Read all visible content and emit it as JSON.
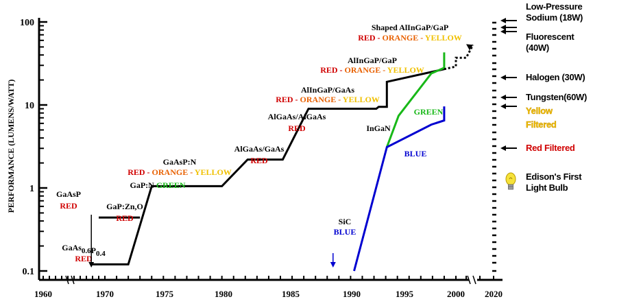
{
  "chart_data": {
    "type": "line",
    "title": "",
    "xlabel": "",
    "ylabel": "PERFORMANCE (LUMENS/WATT)",
    "y_scale": "log",
    "ylim": [
      0.1,
      120
    ],
    "xlim": [
      1958,
      2021
    ],
    "x_ticks": [
      "1960",
      "1970",
      "1975",
      "1980",
      "1985",
      "1990",
      "1995",
      "2000",
      "2020"
    ],
    "y_ticks": [
      "0.1",
      "1",
      "10",
      "100"
    ],
    "legend": "none",
    "colors": {
      "red": "#d00000",
      "orange": "#e86000",
      "yellow": "#f0c000",
      "green": "#18b818",
      "blue": "#0000d0",
      "black": "#000000"
    },
    "series": [
      {
        "color": "black",
        "points": [
          [
            1968,
            0.12
          ],
          [
            1972,
            0.12
          ],
          [
            1974,
            1.05
          ],
          [
            1980,
            1.05
          ],
          [
            1982.2,
            2.2
          ],
          [
            1985.2,
            2.2
          ],
          [
            1987.4,
            9.0
          ],
          [
            1993.2,
            9.0
          ],
          [
            1993.4,
            9.5
          ],
          [
            1994.1,
            9.5
          ],
          [
            1994.1,
            19.0
          ],
          [
            1999,
            27.0
          ]
        ]
      },
      {
        "color": "black",
        "points": [
          [
            1969,
            0.44
          ],
          [
            1973,
            0.44
          ]
        ]
      },
      {
        "color": "green",
        "points": [
          [
            1994.1,
            3.1
          ],
          [
            1995.1,
            7.4
          ],
          [
            1997.9,
            24.0
          ],
          [
            1999,
            28.0
          ],
          [
            1999,
            43.0
          ]
        ]
      },
      {
        "color": "blue",
        "points": [
          [
            1991.3,
            0.1
          ],
          [
            1994.1,
            3.1
          ],
          [
            1997.9,
            5.8
          ],
          [
            1999,
            6.5
          ],
          [
            1999,
            9.6
          ]
        ]
      }
    ],
    "projection": {
      "style": "dotted",
      "color": "black",
      "points": [
        [
          1999,
          27.0
        ],
        [
          2000,
          29.0
        ],
        [
          2000,
          37.0
        ],
        [
          2001,
          37.0
        ],
        [
          2002,
          53.0
        ]
      ]
    },
    "annotations": [
      {
        "lines": [
          [
            {
              "t": "GaAsP",
              "c": "black"
            }
          ],
          [
            {
              "t": "RED",
              "c": "red"
            }
          ]
        ]
      },
      {
        "lines": [
          [
            {
              "t": "GaP:Zn,O",
              "c": "black"
            }
          ],
          [
            {
              "t": "RED",
              "c": "red"
            }
          ]
        ]
      },
      {
        "lines": [
          [
            {
              "t": "GaAs",
              "c": "black"
            },
            {
              "t": "0.6",
              "c": "black",
              "sub": true
            },
            {
              "t": "P",
              "c": "black"
            },
            {
              "t": "0.4",
              "c": "black",
              "sub": true
            }
          ],
          [
            {
              "t": "RED",
              "c": "red"
            }
          ]
        ]
      },
      {
        "lines": [
          [
            {
              "t": "GaAsP:N",
              "c": "black"
            }
          ],
          [
            {
              "t": "RED",
              "c": "red"
            },
            {
              "t": " - ",
              "c": "red"
            },
            {
              "t": "ORANGE",
              "c": "orange"
            },
            {
              "t": " - ",
              "c": "orange"
            },
            {
              "t": "YELLOW",
              "c": "yellow"
            }
          ]
        ]
      },
      {
        "lines": [
          [
            {
              "t": "GaP:N ",
              "c": "black"
            },
            {
              "t": "GREEN",
              "c": "green"
            }
          ]
        ]
      },
      {
        "lines": [
          [
            {
              "t": "AlGaAs/GaAs",
              "c": "black"
            }
          ],
          [
            {
              "t": "RED",
              "c": "red"
            }
          ]
        ]
      },
      {
        "lines": [
          [
            {
              "t": "AlGaAs/AlGaAs",
              "c": "black"
            }
          ],
          [
            {
              "t": "RED",
              "c": "red"
            }
          ]
        ]
      },
      {
        "lines": [
          [
            {
              "t": "AlInGaP/GaAs",
              "c": "black"
            }
          ],
          [
            {
              "t": "RED",
              "c": "red"
            },
            {
              "t": " - ",
              "c": "red"
            },
            {
              "t": "ORANGE",
              "c": "orange"
            },
            {
              "t": " - ",
              "c": "orange"
            },
            {
              "t": "YELLOW",
              "c": "yellow"
            }
          ]
        ]
      },
      {
        "lines": [
          [
            {
              "t": "AlInGaP/GaP",
              "c": "black"
            }
          ],
          [
            {
              "t": "RED",
              "c": "red"
            },
            {
              "t": " - ",
              "c": "red"
            },
            {
              "t": "ORANGE",
              "c": "orange"
            },
            {
              "t": " - ",
              "c": "orange"
            },
            {
              "t": "YELLOW",
              "c": "yellow"
            }
          ]
        ]
      },
      {
        "lines": [
          [
            {
              "t": "Shaped AlInGaP/GaP",
              "c": "black"
            }
          ],
          [
            {
              "t": "RED",
              "c": "red"
            },
            {
              "t": " - ",
              "c": "red"
            },
            {
              "t": "ORANGE",
              "c": "orange"
            },
            {
              "t": " - ",
              "c": "orange"
            },
            {
              "t": "YELLOW",
              "c": "yellow"
            }
          ]
        ]
      },
      {
        "lines": [
          [
            {
              "t": "InGaN",
              "c": "black"
            }
          ]
        ]
      },
      {
        "lines": [
          [
            {
              "t": "GREEN",
              "c": "green"
            }
          ]
        ]
      },
      {
        "lines": [
          [
            {
              "t": "BLUE",
              "c": "blue"
            }
          ]
        ]
      },
      {
        "lines": [
          [
            {
              "t": "SiC",
              "c": "black"
            }
          ],
          [
            {
              "t": "BLUE",
              "c": "blue"
            }
          ]
        ]
      }
    ],
    "event_arrows": [
      {
        "x": 1967.8,
        "color": "black"
      },
      {
        "x": 1989.5,
        "color": "blue"
      }
    ],
    "reference_sources": [
      {
        "lines": [
          "Low-Pressure",
          "Sodium (18W)"
        ],
        "color": "black"
      },
      {
        "lines": [
          "Fluorescent",
          "(40W)"
        ],
        "color": "black"
      },
      {
        "lines": [
          "Halogen (30W)"
        ],
        "color": "black"
      },
      {
        "lines": [
          "Tungsten(60W)"
        ],
        "color": "black"
      },
      {
        "lines": [
          "Yellow",
          "Filtered"
        ],
        "color": "yellow"
      },
      {
        "lines": [
          "Red Filtered"
        ],
        "color": "red"
      },
      {
        "lines": [
          "Edison's First",
          "Light Bulb"
        ],
        "color": "black",
        "icon": "lightbulb-icon"
      }
    ]
  }
}
